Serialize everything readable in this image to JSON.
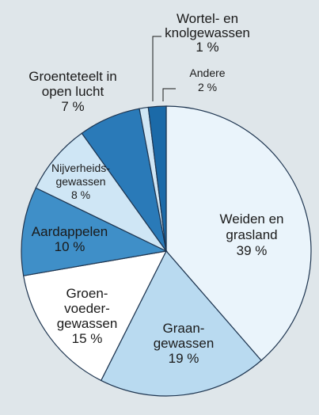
{
  "chart_data": {
    "type": "pie",
    "categories": [
      "Weiden en\ngrasland",
      "Graan-\ngewassen",
      "Groen-\nvoeder-\ngewassen",
      "Aardappelen",
      "Nijverheids-\ngewassen",
      "Groenteteelt in\nopen lucht",
      "Wortel- en\nknolgewassen",
      "Andere"
    ],
    "values": [
      39,
      19,
      15,
      10,
      8,
      7,
      1,
      2
    ],
    "value_labels": [
      "39 %",
      "19 %",
      "15 %",
      "10 %",
      "8 %",
      "7 %",
      "1 %",
      "2 %"
    ],
    "colors": [
      "#eaf4fb",
      "#b9daf0",
      "#ffffff",
      "#3f8fc8",
      "#cfe6f5",
      "#2a7ab8",
      "#cfe6f5",
      "#1b6aa8"
    ]
  }
}
